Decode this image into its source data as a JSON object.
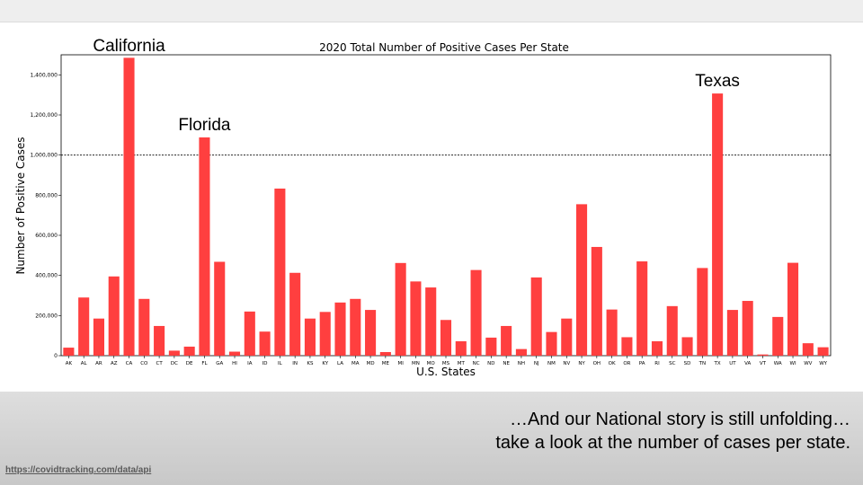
{
  "caption": {
    "line1": "…And our National story is still unfolding…",
    "line2": "take a look at the number of cases per state."
  },
  "source_link": "https://covidtracking.com/data/api",
  "colors": {
    "bar": "#ff3f3f",
    "reference_line": "#000000"
  },
  "chart_data": {
    "type": "bar",
    "title": "2020 Total Number of Positive Cases Per State",
    "xlabel": "U.S. States",
    "ylabel": "Number of Positive Cases",
    "ylim": [
      0,
      1500000
    ],
    "yticks": [
      0,
      200000,
      400000,
      600000,
      800000,
      1000000,
      1200000,
      1400000
    ],
    "ytick_labels": [
      "0",
      "200,000",
      "400,000",
      "600,000",
      "800,000",
      "1,000,000",
      "1,200,000",
      "1,400,000"
    ],
    "grid": false,
    "reference_line": 1000000,
    "categories": [
      "AK",
      "AL",
      "AR",
      "AZ",
      "CA",
      "CO",
      "CT",
      "DC",
      "DE",
      "FL",
      "GA",
      "HI",
      "IA",
      "ID",
      "IL",
      "IN",
      "KS",
      "KY",
      "LA",
      "MA",
      "MD",
      "ME",
      "MI",
      "MN",
      "MO",
      "MS",
      "MT",
      "NC",
      "ND",
      "NE",
      "NH",
      "NJ",
      "NM",
      "NV",
      "NY",
      "OH",
      "OK",
      "OR",
      "PA",
      "RI",
      "SC",
      "SD",
      "TN",
      "TX",
      "UT",
      "VA",
      "VT",
      "WA",
      "WI",
      "WV",
      "WY"
    ],
    "values": [
      40000,
      290000,
      185000,
      395000,
      1485000,
      283000,
      148000,
      25000,
      45000,
      1088000,
      468000,
      20000,
      220000,
      120000,
      833000,
      413000,
      185000,
      218000,
      265000,
      283000,
      228000,
      18000,
      462000,
      370000,
      340000,
      178000,
      72000,
      427000,
      90000,
      148000,
      33000,
      390000,
      118000,
      185000,
      755000,
      542000,
      230000,
      92000,
      470000,
      72000,
      247000,
      92000,
      437000,
      1307000,
      228000,
      273000,
      6000,
      193000,
      463000,
      62000,
      42000
    ],
    "annotations": [
      {
        "text": "California",
        "category": "CA",
        "value": 1485000
      },
      {
        "text": "Florida",
        "category": "FL",
        "value": 1088000
      },
      {
        "text": "Texas",
        "category": "TX",
        "value": 1307000
      }
    ]
  }
}
